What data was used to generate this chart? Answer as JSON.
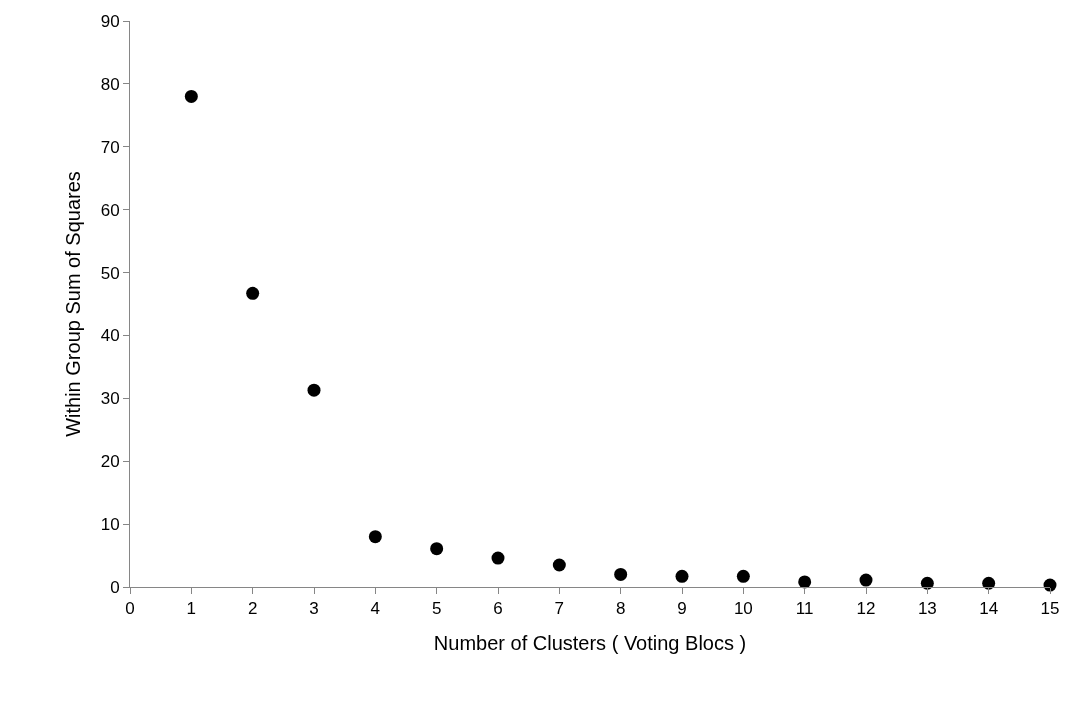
{
  "chart_data": {
    "type": "scatter",
    "xlabel": "Number of Clusters ( Voting Blocs )",
    "ylabel": "Within Group Sum of Squares",
    "x": [
      1,
      2,
      3,
      4,
      5,
      6,
      7,
      8,
      9,
      10,
      11,
      12,
      13,
      14,
      15
    ],
    "series": [
      {
        "color": "#000000",
        "values": [
          78,
          46.7,
          31.3,
          8.0,
          6.1,
          4.6,
          3.5,
          2.0,
          1.7,
          1.7,
          0.8,
          1.1,
          0.6,
          0.6,
          0.3
        ]
      }
    ],
    "xlim": [
      0,
      15
    ],
    "xticks": [
      0,
      1,
      2,
      3,
      4,
      5,
      6,
      7,
      8,
      9,
      10,
      11,
      12,
      13,
      14,
      15
    ],
    "ylim": [
      0,
      90
    ],
    "yticks": [
      0,
      10,
      20,
      30,
      40,
      50,
      60,
      70,
      80,
      90
    ],
    "marker": "circle"
  }
}
